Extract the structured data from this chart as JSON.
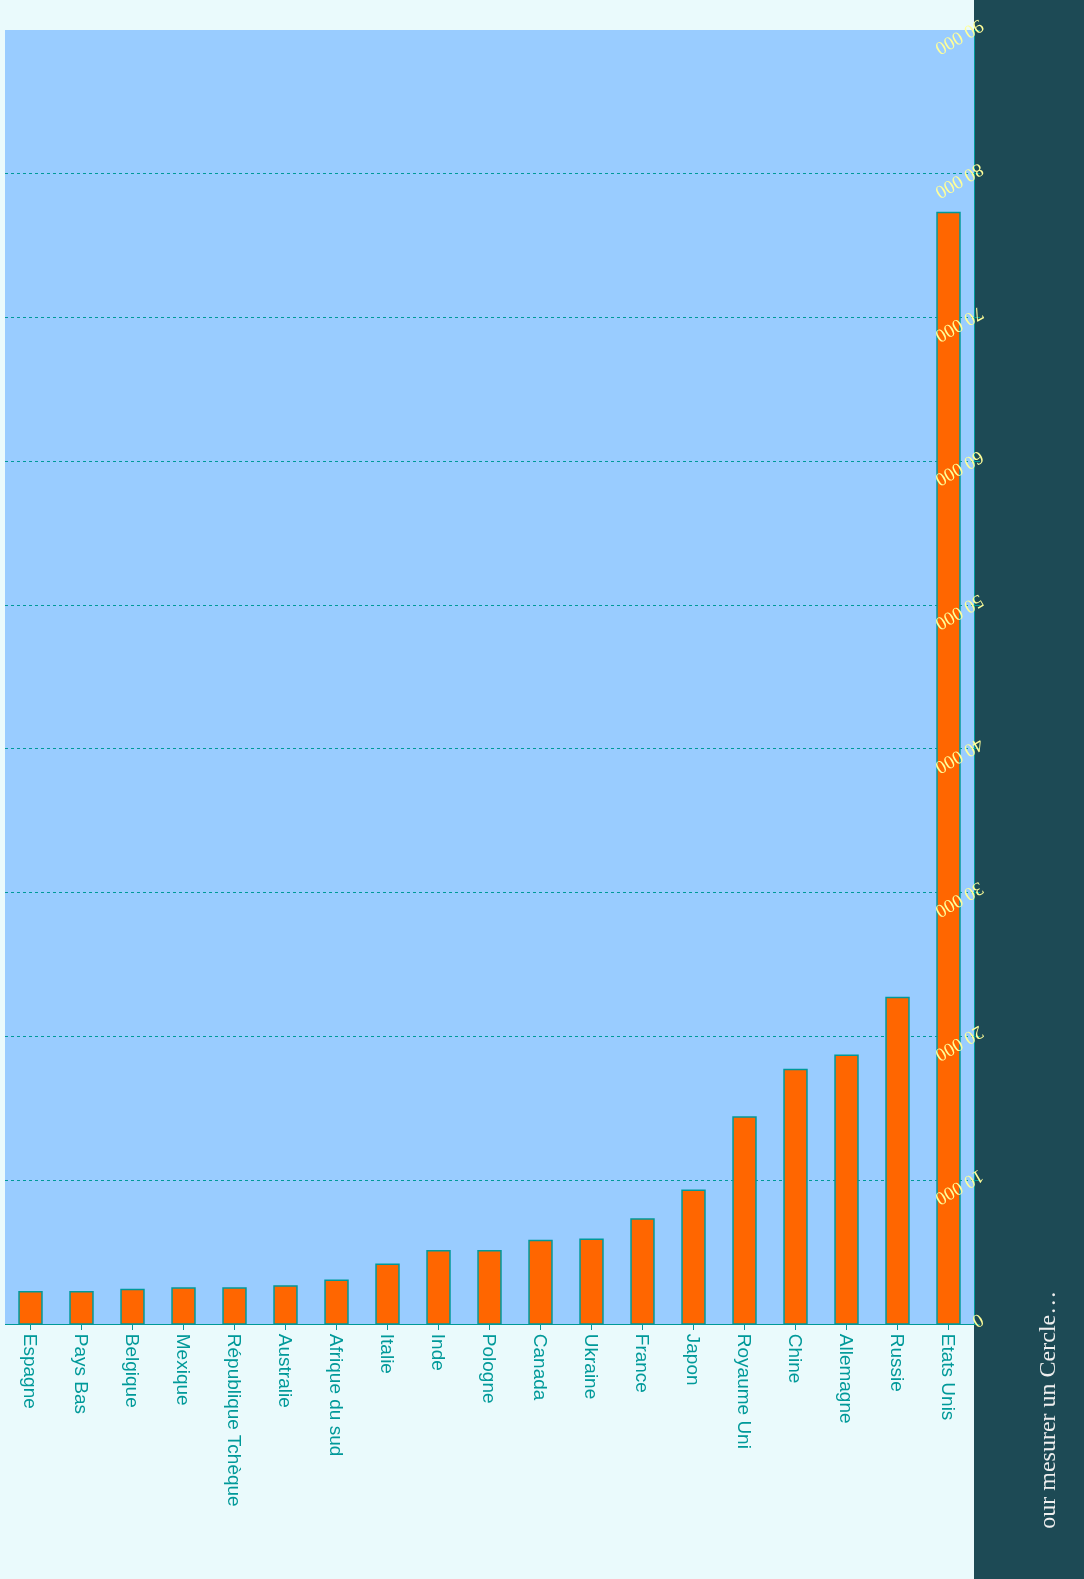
{
  "chart_data": {
    "type": "bar",
    "categories": [
      "Espagne",
      "Pays Bas",
      "Belgique",
      "Mexique",
      "République Tchèque",
      "Australie",
      "Afrique du sud",
      "Italie",
      "Inde",
      "Pologne",
      "Canada",
      "Ukraine",
      "France",
      "Japon",
      "Royaume Uni",
      "Chine",
      "Allemagne",
      "Russie",
      "Etats Unis"
    ],
    "values": [
      2250,
      2250,
      2400,
      2500,
      2500,
      2650,
      3050,
      4150,
      5100,
      5100,
      5800,
      5900,
      7300,
      9300,
      14400,
      17700,
      18700,
      22700,
      77300
    ],
    "color": "#ff6600",
    "ylim": [
      0,
      90000
    ],
    "yticks": [
      0,
      {
        "value": 10000,
        "label": "10 000"
      },
      {
        "value": 20000,
        "label": "20 000"
      },
      {
        "value": 30000,
        "label": "30 000"
      },
      {
        "value": 40000,
        "label": "40 000"
      },
      {
        "value": 50000,
        "label": "50 000"
      },
      {
        "value": 60000,
        "label": "60 000"
      },
      {
        "value": 70000,
        "label": "70 000"
      },
      {
        "value": 80000,
        "label": "80 000"
      },
      {
        "value": 90000,
        "label": "90 000"
      }
    ],
    "grid": "y",
    "annotations": [
      "our mesurer un Cercle…"
    ]
  }
}
